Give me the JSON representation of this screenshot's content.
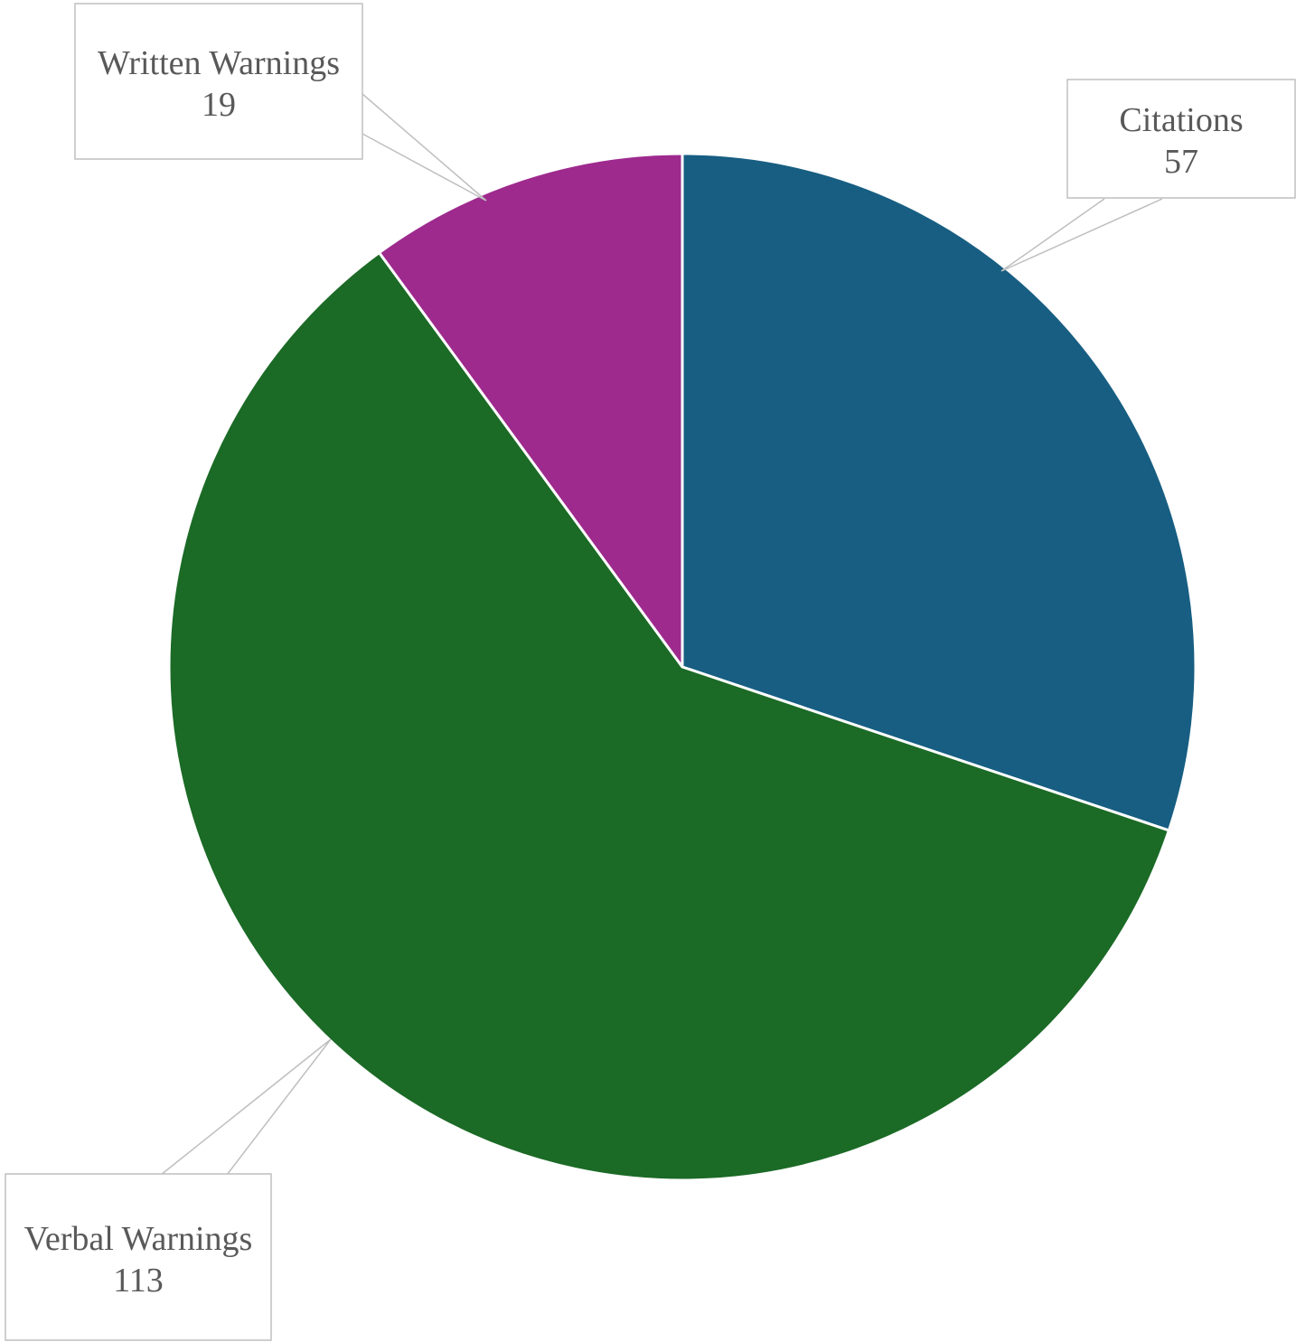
{
  "chart_data": {
    "type": "pie",
    "title": "",
    "start_angle_deg": 0,
    "direction": "clockwise",
    "legend": "none",
    "data_labels": "callouts-with-name-and-value",
    "slices": [
      {
        "name": "Citations",
        "value": 57,
        "color": "#175e82"
      },
      {
        "name": "Verbal Warnings",
        "value": 113,
        "color": "#1b6a26"
      },
      {
        "name": "Written Warnings",
        "value": 19,
        "color": "#9e2a8e"
      }
    ]
  }
}
